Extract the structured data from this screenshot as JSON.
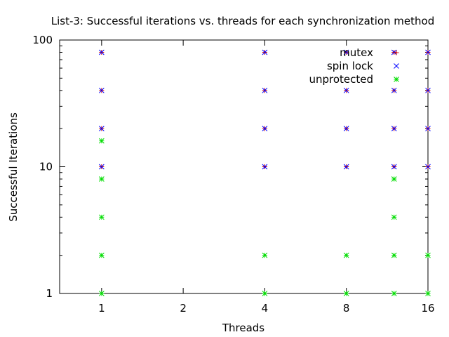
{
  "chart_data": {
    "type": "scatter",
    "title": "List-3: Successful iterations vs. threads for each synchronization method",
    "xlabel": "Threads",
    "ylabel": "Successful Iterations",
    "x_scale": "log2",
    "y_scale": "log10",
    "xlim": [
      0.7,
      16
    ],
    "ylim": [
      1,
      100
    ],
    "x_ticks": [
      {
        "value": 1,
        "label": "1"
      },
      {
        "value": 2,
        "label": "2"
      },
      {
        "value": 4,
        "label": "4"
      },
      {
        "value": 8,
        "label": "8"
      },
      {
        "value": 16,
        "label": "16"
      }
    ],
    "y_ticks": [
      {
        "value": 1,
        "label": "1"
      },
      {
        "value": 10,
        "label": "10"
      },
      {
        "value": 100,
        "label": "100"
      }
    ],
    "grid": false,
    "legend_position": "top-right",
    "series": [
      {
        "name": "mutex",
        "marker": "plus",
        "color": "#cc0000",
        "points": [
          [
            1,
            10
          ],
          [
            1,
            20
          ],
          [
            1,
            40
          ],
          [
            1,
            80
          ],
          [
            4,
            10
          ],
          [
            4,
            20
          ],
          [
            4,
            40
          ],
          [
            4,
            80
          ],
          [
            8,
            10
          ],
          [
            8,
            20
          ],
          [
            8,
            40
          ],
          [
            8,
            80
          ],
          [
            12,
            10
          ],
          [
            12,
            20
          ],
          [
            12,
            40
          ],
          [
            12,
            80
          ],
          [
            16,
            10
          ],
          [
            16,
            20
          ],
          [
            16,
            40
          ],
          [
            16,
            80
          ]
        ]
      },
      {
        "name": "spin lock",
        "marker": "cross",
        "color": "#0000ff",
        "points": [
          [
            1,
            10
          ],
          [
            1,
            20
          ],
          [
            1,
            40
          ],
          [
            1,
            80
          ],
          [
            4,
            10
          ],
          [
            4,
            20
          ],
          [
            4,
            40
          ],
          [
            4,
            80
          ],
          [
            8,
            10
          ],
          [
            8,
            20
          ],
          [
            8,
            40
          ],
          [
            8,
            80
          ],
          [
            12,
            10
          ],
          [
            12,
            20
          ],
          [
            12,
            40
          ],
          [
            12,
            80
          ],
          [
            16,
            10
          ],
          [
            16,
            20
          ],
          [
            16,
            40
          ],
          [
            16,
            80
          ]
        ]
      },
      {
        "name": "unprotected",
        "marker": "star",
        "color": "#00dd00",
        "points": [
          [
            1,
            1
          ],
          [
            1,
            2
          ],
          [
            1,
            4
          ],
          [
            1,
            8
          ],
          [
            1,
            16
          ],
          [
            4,
            1
          ],
          [
            4,
            2
          ],
          [
            8,
            1
          ],
          [
            8,
            2
          ],
          [
            12,
            1
          ],
          [
            12,
            2
          ],
          [
            12,
            4
          ],
          [
            12,
            8
          ],
          [
            16,
            1
          ],
          [
            16,
            2
          ]
        ]
      }
    ]
  }
}
